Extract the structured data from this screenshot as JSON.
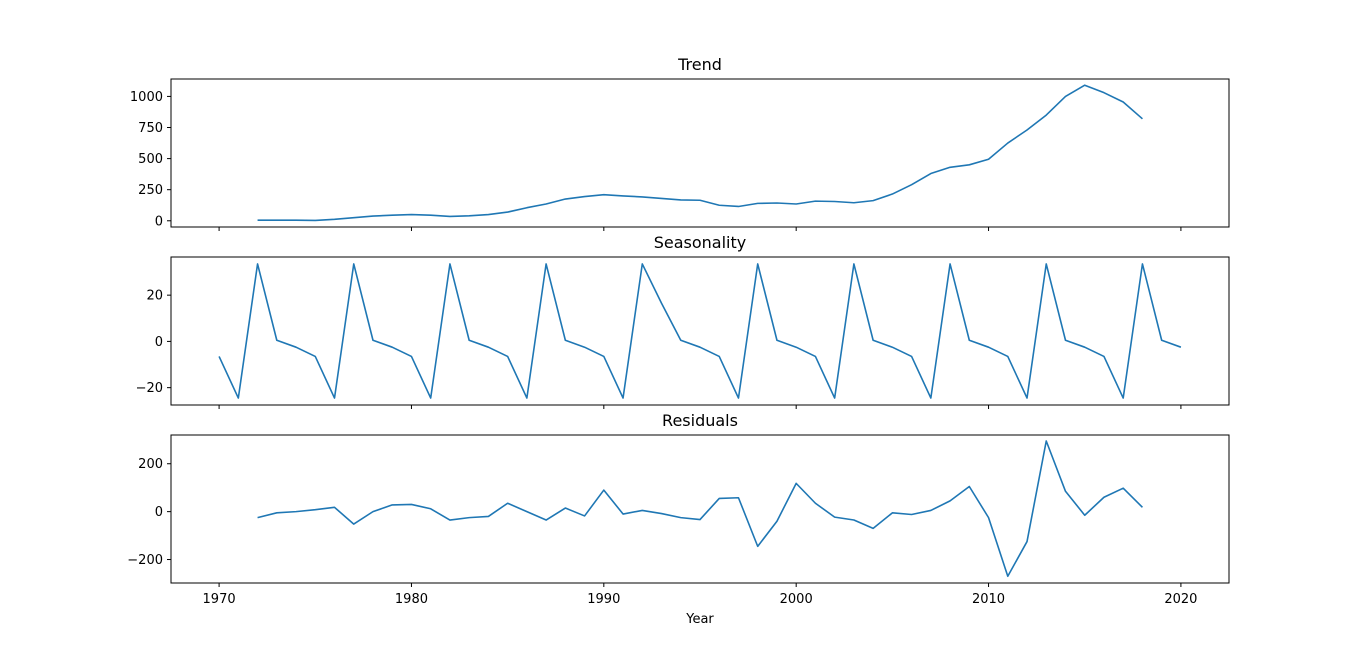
{
  "chart_data": [
    {
      "type": "line",
      "title": "Trend",
      "xlabel": "",
      "ylabel": "",
      "xlim": [
        1967.5,
        2022.5
      ],
      "ylim": [
        -50,
        1140
      ],
      "yticks": [
        0,
        250,
        500,
        750,
        1000
      ],
      "xticks": [
        1970,
        1980,
        1990,
        2000,
        2010,
        2020
      ],
      "show_xtick_labels": false,
      "color": "#1f77b4",
      "series": [
        {
          "x": [
            1972,
            1973,
            1974,
            1975,
            1976,
            1977,
            1978,
            1979,
            1980,
            1981,
            1982,
            1983,
            1984,
            1985,
            1986,
            1987,
            1988,
            1989,
            1990,
            1991,
            1992,
            1993,
            1994,
            1995,
            1996,
            1997,
            1998,
            1999,
            2000,
            2001,
            2002,
            2003,
            2004,
            2005,
            2006,
            2007,
            2008,
            2009,
            2010,
            2011,
            2012,
            2013,
            2014,
            2015,
            2016,
            2017,
            2018
          ],
          "values": [
            5,
            5,
            5,
            3,
            12,
            25,
            38,
            45,
            50,
            45,
            35,
            40,
            50,
            70,
            105,
            135,
            175,
            195,
            210,
            200,
            192,
            180,
            168,
            165,
            125,
            115,
            140,
            143,
            135,
            158,
            155,
            145,
            162,
            215,
            290,
            380,
            430,
            450,
            495,
            625,
            730,
            850,
            1000,
            1090,
            1030,
            955,
            820
          ]
        }
      ]
    },
    {
      "type": "line",
      "title": "Seasonality",
      "xlabel": "",
      "ylabel": "",
      "xlim": [
        1967.5,
        2022.5
      ],
      "ylim": [
        -27.5,
        36.5
      ],
      "yticks": [
        -20,
        0,
        20
      ],
      "xticks": [
        1970,
        1980,
        1990,
        2000,
        2010,
        2020
      ],
      "show_xtick_labels": false,
      "color": "#1f77b4",
      "series": [
        {
          "x": [
            1970,
            1971,
            1972,
            1973,
            1974,
            1975,
            1976,
            1977,
            1978,
            1979,
            1980,
            1981,
            1982,
            1983,
            1984,
            1985,
            1986,
            1987,
            1988,
            1989,
            1990,
            1991,
            1992,
            1993,
            1994,
            1995,
            1996,
            1997,
            1998,
            1999,
            2000,
            2001,
            2002,
            2003,
            2004,
            2005,
            2006,
            2007,
            2008,
            2009,
            2010,
            2011,
            2012,
            2013,
            2014,
            2015,
            2016,
            2017,
            2018,
            2019,
            2020
          ],
          "values": [
            -6.5,
            -24.5,
            33.5,
            0.5,
            -2.5,
            -6.5,
            -24.5,
            33.5,
            0.5,
            -2.5,
            -6.5,
            -24.5,
            33.5,
            0.5,
            -2.5,
            -6.5,
            -24.5,
            33.5,
            0.5,
            -2.5,
            -6.5,
            -24.5,
            33.5,
            16.5,
            0.5,
            -2.5,
            -6.5,
            -24.5,
            33.5,
            0.5,
            -2.5,
            -6.5,
            -24.5,
            33.5,
            0.5,
            -2.5,
            -6.5,
            -24.5,
            33.5,
            0.5,
            -2.5,
            -6.5,
            -24.5,
            33.5,
            0.5,
            -2.5,
            -6.5,
            -24.5,
            33.5,
            0.5,
            -2.5
          ]
        }
      ]
    },
    {
      "type": "line",
      "title": "Residuals",
      "xlabel": "Year",
      "ylabel": "",
      "xlim": [
        1967.5,
        2022.5
      ],
      "ylim": [
        -298,
        320
      ],
      "yticks": [
        -200,
        0,
        200
      ],
      "xticks": [
        1970,
        1980,
        1990,
        2000,
        2010,
        2020
      ],
      "show_xtick_labels": true,
      "color": "#1f77b4",
      "series": [
        {
          "x": [
            1972,
            1973,
            1974,
            1975,
            1976,
            1977,
            1978,
            1979,
            1980,
            1981,
            1982,
            1983,
            1984,
            1985,
            1986,
            1987,
            1988,
            1989,
            1990,
            1991,
            1992,
            1993,
            1994,
            1995,
            1996,
            1997,
            1998,
            1999,
            2000,
            2001,
            2002,
            2003,
            2004,
            2005,
            2006,
            2007,
            2008,
            2009,
            2010,
            2011,
            2012,
            2013,
            2014,
            2015,
            2016,
            2017,
            2018
          ],
          "values": [
            -25,
            -5,
            0,
            8,
            18,
            -52,
            0,
            28,
            30,
            12,
            -35,
            -25,
            -20,
            35,
            0,
            -35,
            15,
            -18,
            90,
            -10,
            5,
            -8,
            -25,
            -33,
            55,
            58,
            -145,
            -40,
            118,
            35,
            -23,
            -35,
            -70,
            -5,
            -12,
            5,
            45,
            105,
            -25,
            -270,
            -125,
            295,
            85,
            -15,
            60,
            98,
            18
          ]
        }
      ]
    }
  ]
}
